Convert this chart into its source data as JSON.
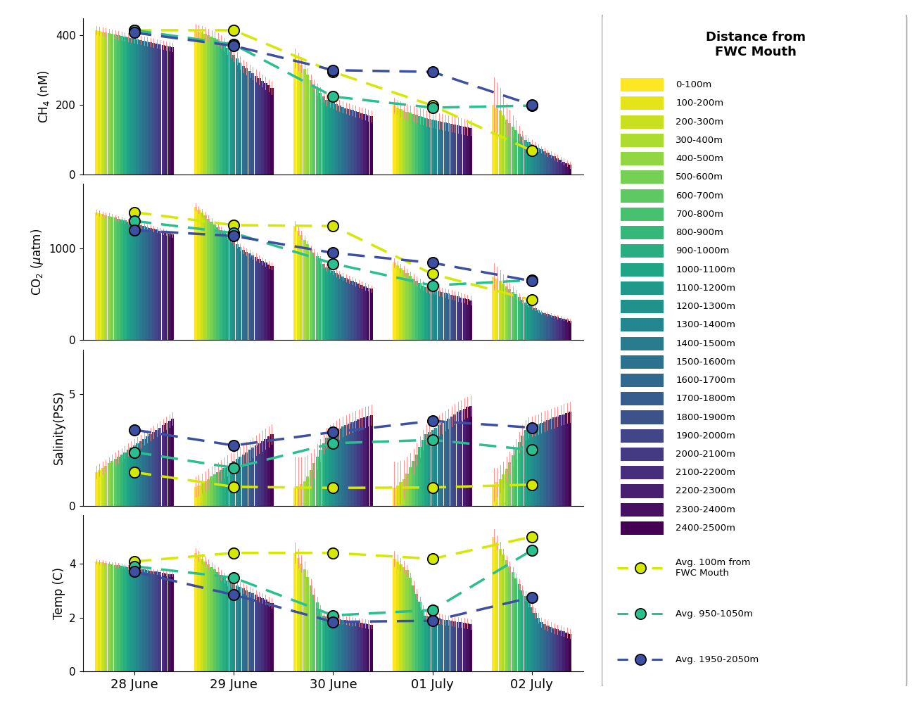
{
  "dates": [
    "28 June",
    "29 June",
    "30 June",
    "01 July",
    "02 July"
  ],
  "n_bars": 25,
  "distance_labels": [
    "0-100m",
    "100-200m",
    "200-300m",
    "300-400m",
    "400-500m",
    "500-600m",
    "600-700m",
    "700-800m",
    "800-900m",
    "900-1000m",
    "1000-1100m",
    "1100-1200m",
    "1200-1300m",
    "1300-1400m",
    "1400-1500m",
    "1500-1600m",
    "1600-1700m",
    "1700-1800m",
    "1800-1900m",
    "1900-2000m",
    "2000-2100m",
    "2100-2200m",
    "2200-2300m",
    "2300-2400m",
    "2400-2500m"
  ],
  "ch4": {
    "ylabel": "CH$_4$ (nM)",
    "ylim": [
      0,
      450
    ],
    "yticks": [
      0,
      200,
      400
    ],
    "bar_heights": [
      [
        415,
        413,
        411,
        409,
        407,
        405,
        403,
        401,
        399,
        397,
        395,
        393,
        391,
        389,
        387,
        385,
        383,
        381,
        379,
        377,
        375,
        373,
        371,
        369,
        367
      ],
      [
        415,
        411,
        408,
        404,
        400,
        396,
        392,
        388,
        382,
        374,
        364,
        354,
        344,
        334,
        322,
        312,
        305,
        298,
        291,
        284,
        277,
        270,
        263,
        256,
        249
      ],
      [
        335,
        325,
        315,
        303,
        288,
        272,
        258,
        244,
        234,
        224,
        215,
        210,
        206,
        202,
        198,
        194,
        191,
        188,
        185,
        182,
        179,
        176,
        173,
        170,
        167
      ],
      [
        198,
        193,
        188,
        183,
        180,
        177,
        174,
        171,
        168,
        165,
        162,
        160,
        158,
        156,
        154,
        152,
        150,
        148,
        146,
        144,
        142,
        140,
        138,
        136,
        134
      ],
      [
        200,
        193,
        183,
        170,
        158,
        148,
        138,
        128,
        118,
        108,
        98,
        92,
        87,
        82,
        77,
        72,
        67,
        62,
        57,
        52,
        47,
        42,
        37,
        32,
        27
      ]
    ],
    "err_heights": [
      [
        12,
        12,
        12,
        12,
        12,
        12,
        12,
        12,
        12,
        12,
        12,
        12,
        12,
        12,
        12,
        12,
        12,
        12,
        12,
        12,
        12,
        12,
        12,
        12,
        12
      ],
      [
        18,
        18,
        18,
        18,
        18,
        18,
        18,
        18,
        18,
        18,
        18,
        18,
        18,
        18,
        18,
        18,
        18,
        18,
        18,
        18,
        18,
        18,
        18,
        18,
        18
      ],
      [
        28,
        25,
        22,
        20,
        18,
        16,
        16,
        16,
        16,
        16,
        16,
        16,
        16,
        16,
        16,
        16,
        16,
        16,
        16,
        16,
        16,
        16,
        16,
        16,
        16
      ],
      [
        22,
        22,
        22,
        22,
        22,
        22,
        22,
        22,
        22,
        22,
        22,
        22,
        22,
        22,
        22,
        22,
        22,
        22,
        22,
        22,
        22,
        22,
        22,
        22,
        22
      ],
      [
        80,
        72,
        65,
        55,
        46,
        38,
        32,
        27,
        22,
        18,
        15,
        13,
        12,
        11,
        10,
        9,
        9,
        9,
        9,
        9,
        9,
        9,
        9,
        9,
        9
      ]
    ],
    "line_100m": [
      415,
      415,
      295,
      198,
      68
    ],
    "line_950m": [
      415,
      374,
      224,
      192,
      198
    ],
    "line_1950m": [
      408,
      370,
      300,
      295,
      200
    ]
  },
  "co2": {
    "ylabel": "CO$_2$ ($\\mu$atm)",
    "ylim": [
      0,
      1700
    ],
    "yticks": [
      0,
      1000
    ],
    "bar_heights": [
      [
        1390,
        1380,
        1370,
        1360,
        1350,
        1340,
        1330,
        1320,
        1310,
        1300,
        1290,
        1280,
        1270,
        1260,
        1250,
        1240,
        1230,
        1220,
        1210,
        1200,
        1190,
        1180,
        1170,
        1160,
        1150
      ],
      [
        1450,
        1420,
        1388,
        1356,
        1322,
        1290,
        1258,
        1226,
        1196,
        1164,
        1132,
        1102,
        1072,
        1042,
        1012,
        982,
        962,
        942,
        922,
        902,
        882,
        862,
        842,
        822,
        802
      ],
      [
        1240,
        1190,
        1140,
        1090,
        1040,
        992,
        952,
        912,
        872,
        832,
        792,
        772,
        752,
        732,
        712,
        692,
        677,
        662,
        647,
        632,
        617,
        602,
        587,
        572,
        557
      ],
      [
        840,
        812,
        784,
        756,
        726,
        698,
        670,
        644,
        618,
        594,
        574,
        564,
        554,
        544,
        534,
        524,
        514,
        504,
        494,
        484,
        474,
        464,
        454,
        444,
        434
      ],
      [
        690,
        668,
        642,
        612,
        582,
        552,
        524,
        496,
        468,
        440,
        410,
        388,
        366,
        344,
        322,
        302,
        292,
        282,
        272,
        262,
        252,
        242,
        232,
        222,
        212
      ]
    ],
    "err_heights": [
      [
        28,
        28,
        28,
        28,
        28,
        28,
        28,
        28,
        28,
        28,
        28,
        28,
        28,
        28,
        28,
        28,
        28,
        28,
        28,
        28,
        28,
        28,
        28,
        28,
        28
      ],
      [
        38,
        38,
        38,
        38,
        38,
        38,
        38,
        38,
        38,
        38,
        38,
        38,
        38,
        38,
        38,
        38,
        38,
        38,
        38,
        38,
        38,
        38,
        38,
        38,
        38
      ],
      [
        55,
        50,
        46,
        42,
        38,
        38,
        38,
        38,
        38,
        38,
        38,
        38,
        38,
        38,
        38,
        38,
        38,
        38,
        38,
        38,
        38,
        38,
        38,
        38,
        38
      ],
      [
        48,
        48,
        48,
        48,
        48,
        48,
        48,
        48,
        48,
        48,
        48,
        48,
        48,
        48,
        48,
        48,
        48,
        48,
        48,
        48,
        48,
        48,
        48,
        48,
        48
      ],
      [
        145,
        132,
        118,
        105,
        88,
        68,
        58,
        48,
        38,
        32,
        28,
        26,
        24,
        22,
        20,
        18,
        18,
        18,
        18,
        18,
        18,
        18,
        18,
        18,
        18
      ]
    ],
    "line_100m": [
      1390,
      1250,
      1240,
      718,
      436
    ],
    "line_950m": [
      1295,
      1164,
      832,
      594,
      652
    ],
    "line_1950m": [
      1195,
      1132,
      948,
      840,
      642
    ]
  },
  "salinity": {
    "ylabel": "Salinity(PSS)",
    "ylim": [
      0,
      7
    ],
    "yticks": [
      0,
      5
    ],
    "bar_heights": [
      [
        1.5,
        1.6,
        1.7,
        1.8,
        1.9,
        2.0,
        2.1,
        2.2,
        2.3,
        2.4,
        2.5,
        2.6,
        2.7,
        2.8,
        2.9,
        3.0,
        3.1,
        3.2,
        3.3,
        3.4,
        3.5,
        3.6,
        3.7,
        3.8,
        3.9
      ],
      [
        0.85,
        0.92,
        1.0,
        1.1,
        1.2,
        1.3,
        1.4,
        1.5,
        1.6,
        1.7,
        1.8,
        1.9,
        2.0,
        2.1,
        2.2,
        2.3,
        2.4,
        2.5,
        2.6,
        2.7,
        2.8,
        2.9,
        3.0,
        3.1,
        3.2
      ],
      [
        0.8,
        0.88,
        0.98,
        1.1,
        1.3,
        1.6,
        1.9,
        2.2,
        2.5,
        2.8,
        3.05,
        3.15,
        3.25,
        3.35,
        3.45,
        3.55,
        3.62,
        3.68,
        3.74,
        3.8,
        3.86,
        3.92,
        3.97,
        4.02,
        4.07
      ],
      [
        0.82,
        0.9,
        1.05,
        1.2,
        1.45,
        1.72,
        2.0,
        2.3,
        2.65,
        2.95,
        3.2,
        3.3,
        3.4,
        3.5,
        3.6,
        3.7,
        3.8,
        3.9,
        4.0,
        4.1,
        4.2,
        4.28,
        4.35,
        4.42,
        4.48
      ],
      [
        0.95,
        1.05,
        1.2,
        1.4,
        1.65,
        1.95,
        2.25,
        2.55,
        2.85,
        3.15,
        3.4,
        3.5,
        3.55,
        3.6,
        3.65,
        3.72,
        3.78,
        3.84,
        3.9,
        3.95,
        4.0,
        4.05,
        4.1,
        4.15,
        4.2
      ]
    ],
    "err_heights": [
      [
        0.28,
        0.28,
        0.28,
        0.28,
        0.28,
        0.28,
        0.28,
        0.28,
        0.28,
        0.28,
        0.28,
        0.28,
        0.28,
        0.28,
        0.28,
        0.28,
        0.28,
        0.28,
        0.28,
        0.28,
        0.28,
        0.28,
        0.28,
        0.28,
        0.28
      ],
      [
        0.45,
        0.45,
        0.45,
        0.45,
        0.45,
        0.45,
        0.45,
        0.45,
        0.45,
        0.45,
        0.45,
        0.45,
        0.45,
        0.45,
        0.45,
        0.45,
        0.45,
        0.45,
        0.45,
        0.45,
        0.45,
        0.45,
        0.45,
        0.45,
        0.45
      ],
      [
        1.4,
        1.3,
        1.2,
        1.1,
        0.95,
        0.75,
        0.65,
        0.55,
        0.48,
        0.45,
        0.45,
        0.45,
        0.45,
        0.45,
        0.45,
        0.45,
        0.45,
        0.45,
        0.45,
        0.45,
        0.45,
        0.45,
        0.45,
        0.45,
        0.45
      ],
      [
        1.15,
        1.05,
        0.95,
        0.85,
        0.75,
        0.65,
        0.55,
        0.48,
        0.45,
        0.45,
        0.45,
        0.45,
        0.45,
        0.45,
        0.45,
        0.45,
        0.45,
        0.45,
        0.45,
        0.45,
        0.45,
        0.45,
        0.45,
        0.45,
        0.45
      ],
      [
        0.75,
        0.65,
        0.62,
        0.58,
        0.55,
        0.48,
        0.45,
        0.45,
        0.45,
        0.45,
        0.45,
        0.45,
        0.45,
        0.45,
        0.45,
        0.45,
        0.45,
        0.45,
        0.45,
        0.45,
        0.45,
        0.45,
        0.45,
        0.45,
        0.45
      ]
    ],
    "line_100m": [
      1.5,
      0.85,
      0.8,
      0.82,
      0.95
    ],
    "line_950m": [
      2.4,
      1.7,
      2.8,
      2.95,
      2.5
    ],
    "line_1950m": [
      3.4,
      2.7,
      3.3,
      3.8,
      3.5
    ]
  },
  "temp": {
    "ylabel": "Temp (C)",
    "ylim": [
      0,
      5.8
    ],
    "yticks": [
      0,
      2,
      4
    ],
    "bar_heights": [
      [
        4.08,
        4.06,
        4.04,
        4.02,
        4.0,
        3.98,
        3.96,
        3.94,
        3.92,
        3.9,
        3.88,
        3.86,
        3.84,
        3.82,
        3.8,
        3.78,
        3.76,
        3.74,
        3.72,
        3.7,
        3.68,
        3.66,
        3.64,
        3.62,
        3.6
      ],
      [
        4.4,
        4.28,
        4.18,
        4.08,
        3.98,
        3.88,
        3.78,
        3.68,
        3.58,
        3.48,
        3.38,
        3.32,
        3.26,
        3.2,
        3.14,
        3.08,
        3.02,
        2.96,
        2.9,
        2.84,
        2.78,
        2.72,
        2.66,
        2.6,
        2.54
      ],
      [
        4.4,
        4.2,
        4.0,
        3.78,
        3.5,
        3.18,
        2.86,
        2.56,
        2.28,
        2.08,
        2.03,
        2.0,
        1.98,
        1.96,
        1.94,
        1.92,
        1.9,
        1.88,
        1.86,
        1.84,
        1.82,
        1.8,
        1.78,
        1.76,
        1.74
      ],
      [
        4.18,
        4.08,
        3.98,
        3.88,
        3.76,
        3.48,
        3.18,
        2.88,
        2.58,
        2.28,
        2.08,
        2.03,
        2.0,
        1.98,
        1.96,
        1.94,
        1.92,
        1.9,
        1.88,
        1.86,
        1.84,
        1.82,
        1.8,
        1.78,
        1.76
      ],
      [
        5.0,
        4.78,
        4.56,
        4.34,
        4.12,
        3.9,
        3.68,
        3.46,
        3.24,
        3.02,
        2.8,
        2.58,
        2.38,
        2.18,
        1.98,
        1.82,
        1.75,
        1.7,
        1.65,
        1.6,
        1.56,
        1.52,
        1.48,
        1.44,
        1.4
      ]
    ],
    "err_heights": [
      [
        0.08,
        0.08,
        0.08,
        0.08,
        0.08,
        0.08,
        0.08,
        0.08,
        0.08,
        0.08,
        0.08,
        0.08,
        0.08,
        0.08,
        0.08,
        0.08,
        0.08,
        0.08,
        0.08,
        0.08,
        0.08,
        0.08,
        0.08,
        0.08,
        0.08
      ],
      [
        0.18,
        0.18,
        0.18,
        0.18,
        0.18,
        0.18,
        0.18,
        0.18,
        0.18,
        0.18,
        0.18,
        0.18,
        0.18,
        0.18,
        0.18,
        0.18,
        0.18,
        0.18,
        0.18,
        0.18,
        0.18,
        0.18,
        0.18,
        0.18,
        0.18
      ],
      [
        0.38,
        0.35,
        0.32,
        0.3,
        0.27,
        0.25,
        0.22,
        0.2,
        0.18,
        0.16,
        0.15,
        0.15,
        0.15,
        0.15,
        0.15,
        0.15,
        0.15,
        0.15,
        0.15,
        0.15,
        0.15,
        0.15,
        0.15,
        0.15,
        0.15
      ],
      [
        0.28,
        0.26,
        0.24,
        0.22,
        0.2,
        0.18,
        0.18,
        0.18,
        0.18,
        0.18,
        0.18,
        0.18,
        0.18,
        0.18,
        0.18,
        0.18,
        0.18,
        0.18,
        0.18,
        0.18,
        0.18,
        0.18,
        0.18,
        0.18,
        0.18
      ],
      [
        0.28,
        0.26,
        0.24,
        0.22,
        0.2,
        0.18,
        0.18,
        0.18,
        0.18,
        0.18,
        0.18,
        0.18,
        0.18,
        0.18,
        0.18,
        0.18,
        0.18,
        0.18,
        0.18,
        0.18,
        0.18,
        0.18,
        0.18,
        0.18,
        0.18
      ]
    ],
    "line_100m": [
      4.08,
      4.4,
      4.4,
      4.18,
      5.0
    ],
    "line_950m": [
      3.9,
      3.48,
      2.08,
      2.28,
      4.5
    ],
    "line_1950m": [
      3.7,
      2.84,
      1.84,
      1.88,
      2.75
    ]
  },
  "background_color": "#ffffff",
  "line_100m_color": "#d4e800",
  "line_950m_color": "#2abf8e",
  "line_1950m_color": "#3c4fa0",
  "err_color": "#ff8888",
  "title_legend": "Distance from\nFWC Mouth"
}
